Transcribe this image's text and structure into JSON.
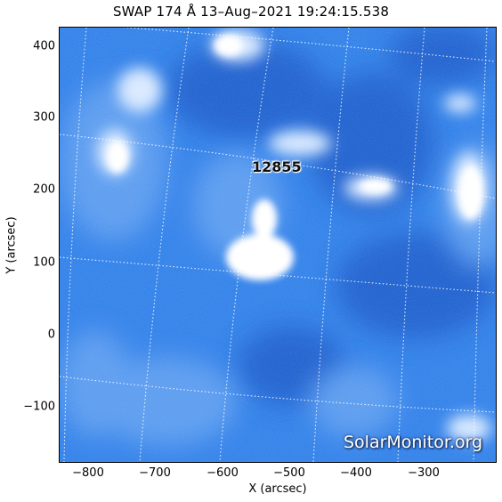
{
  "title": "SWAP 174 Å 13–Aug–2021 19:24:15.538",
  "axes": {
    "xlabel": "X (arcsec)",
    "ylabel": "Y (arcsec)",
    "x_ticks": [
      "−800",
      "−700",
      "−600",
      "−500",
      "−400",
      "−300"
    ],
    "y_ticks": [
      "400",
      "300",
      "200",
      "100",
      "0",
      "−100"
    ],
    "xlim": [
      -832,
      -236
    ],
    "ylim": [
      -178,
      432
    ]
  },
  "active_region_label": "12855",
  "watermark": "SolarMonitor.org",
  "colors": {
    "background": "#2e7de6",
    "bright": "#ffffff",
    "dark": "#1f5fc4"
  }
}
